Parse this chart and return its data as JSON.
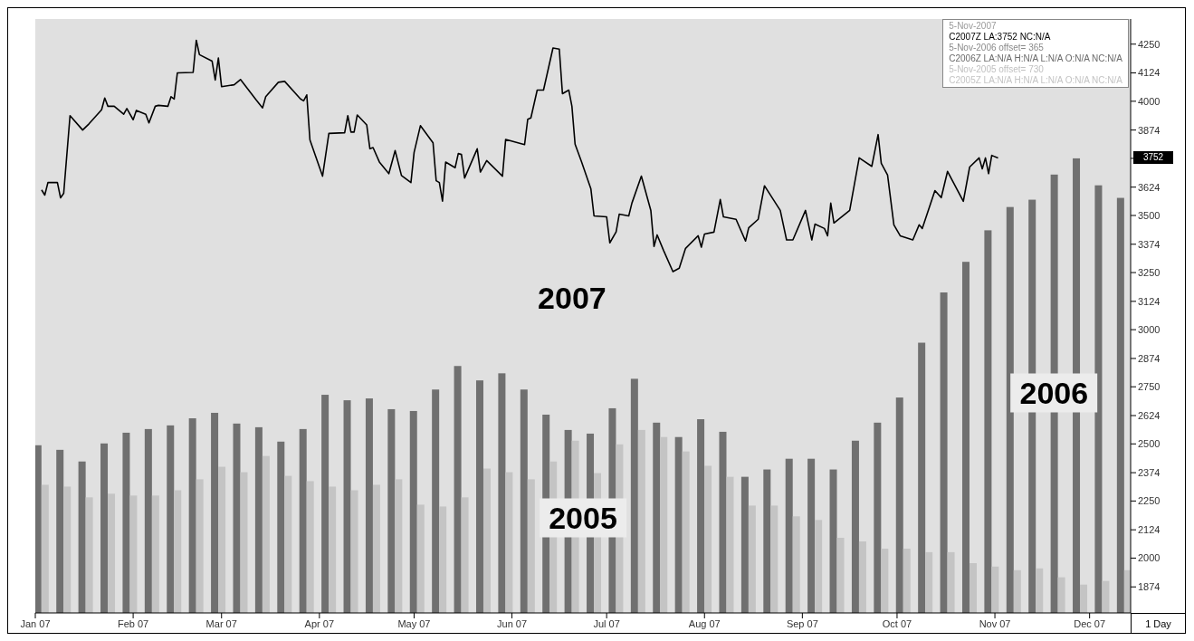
{
  "chart_data": {
    "type": "bar",
    "xlim": [
      "2007-01-01",
      "2007-12-14"
    ],
    "xticks": [
      {
        "value": "2007-01-01",
        "label": "Jan 07"
      },
      {
        "value": "2007-02-01",
        "label": "Feb 07"
      },
      {
        "value": "2007-03-01",
        "label": "Mar 07"
      },
      {
        "value": "2007-04-01",
        "label": "Apr 07"
      },
      {
        "value": "2007-05-01",
        "label": "May 07"
      },
      {
        "value": "2007-06-01",
        "label": "Jun 07"
      },
      {
        "value": "2007-07-01",
        "label": "Jul 07"
      },
      {
        "value": "2007-08-01",
        "label": "Aug 07"
      },
      {
        "value": "2007-09-01",
        "label": "Sep 07"
      },
      {
        "value": "2007-10-01",
        "label": "Oct 07"
      },
      {
        "value": "2007-11-01",
        "label": "Nov 07"
      },
      {
        "value": "2007-12-01",
        "label": "Dec 07"
      }
    ],
    "ylim": [
      1760,
      4360
    ],
    "yticks": [
      1874,
      2000,
      2124,
      2250,
      2374,
      2500,
      2624,
      2750,
      2874,
      3000,
      3124,
      3250,
      3374,
      3500,
      3624,
      {
        "value": 3750,
        "label": null
      },
      3874,
      4000,
      4124,
      4250
    ],
    "grid": false,
    "legend": false,
    "marker": "none",
    "line_style": "solid",
    "series": [
      {
        "name": "2007",
        "type": "line",
        "color": "#000000",
        "x": [
          "2007-01-03",
          "2007-01-04",
          "2007-01-05",
          "2007-01-08",
          "2007-01-09",
          "2007-01-10",
          "2007-01-12",
          "2007-01-16",
          "2007-01-18",
          "2007-01-22",
          "2007-01-23",
          "2007-01-24",
          "2007-01-26",
          "2007-01-29",
          "2007-01-30",
          "2007-02-01",
          "2007-02-02",
          "2007-02-05",
          "2007-02-06",
          "2007-02-08",
          "2007-02-09",
          "2007-02-12",
          "2007-02-13",
          "2007-02-14",
          "2007-02-15",
          "2007-02-20",
          "2007-02-21",
          "2007-02-22",
          "2007-02-26",
          "2007-02-27",
          "2007-02-28",
          "2007-03-01",
          "2007-03-05",
          "2007-03-07",
          "2007-03-12",
          "2007-03-14",
          "2007-03-15",
          "2007-03-19",
          "2007-03-21",
          "2007-03-26",
          "2007-03-27",
          "2007-03-28",
          "2007-03-29",
          "2007-04-02",
          "2007-04-04",
          "2007-04-09",
          "2007-04-10",
          "2007-04-11",
          "2007-04-12",
          "2007-04-13",
          "2007-04-16",
          "2007-04-17",
          "2007-04-18",
          "2007-04-20",
          "2007-04-23",
          "2007-04-25",
          "2007-04-27",
          "2007-04-30",
          "2007-05-01",
          "2007-05-03",
          "2007-05-07",
          "2007-05-08",
          "2007-05-09",
          "2007-05-10",
          "2007-05-11",
          "2007-05-14",
          "2007-05-15",
          "2007-05-16",
          "2007-05-17",
          "2007-05-21",
          "2007-05-22",
          "2007-05-24",
          "2007-05-29",
          "2007-05-30",
          "2007-06-05",
          "2007-06-06",
          "2007-06-07",
          "2007-06-09",
          "2007-06-11",
          "2007-06-14",
          "2007-06-16",
          "2007-06-17",
          "2007-06-19",
          "2007-06-20",
          "2007-06-21",
          "2007-06-23",
          "2007-06-26",
          "2007-06-27",
          "2007-07-01",
          "2007-07-02",
          "2007-07-04",
          "2007-07-05",
          "2007-07-08",
          "2007-07-09",
          "2007-07-12",
          "2007-07-15",
          "2007-07-16",
          "2007-07-17",
          "2007-07-19",
          "2007-07-22",
          "2007-07-24",
          "2007-07-26",
          "2007-07-30",
          "2007-07-31",
          "2007-08-01",
          "2007-08-04",
          "2007-08-06",
          "2007-08-07",
          "2007-08-11",
          "2007-08-14",
          "2007-08-15",
          "2007-08-18",
          "2007-08-20",
          "2007-08-25",
          "2007-08-27",
          "2007-08-29",
          "2007-09-02",
          "2007-09-04",
          "2007-09-05",
          "2007-09-08",
          "2007-09-09",
          "2007-09-10",
          "2007-09-11",
          "2007-09-16",
          "2007-09-19",
          "2007-09-23",
          "2007-09-25",
          "2007-09-26",
          "2007-09-28",
          "2007-09-30",
          "2007-10-02",
          "2007-10-06",
          "2007-10-08",
          "2007-10-09",
          "2007-10-13",
          "2007-10-15",
          "2007-10-17",
          "2007-10-22",
          "2007-10-24",
          "2007-10-27",
          "2007-10-28",
          "2007-10-29",
          "2007-10-30",
          "2007-10-31",
          "2007-11-02"
        ],
        "values": [
          3612,
          3589,
          3644,
          3644,
          3577,
          3597,
          3937,
          3874,
          3901,
          3963,
          4014,
          3978,
          3978,
          3943,
          3968,
          3919,
          3960,
          3943,
          3905,
          3978,
          3982,
          3978,
          4020,
          4010,
          4124,
          4126,
          4267,
          4204,
          4176,
          4093,
          4189,
          4064,
          4072,
          4095,
          4005,
          3971,
          4020,
          4083,
          4087,
          4010,
          4002,
          4028,
          3831,
          3672,
          3859,
          3862,
          3937,
          3865,
          3865,
          3940,
          3896,
          3792,
          3797,
          3734,
          3683,
          3784,
          3675,
          3644,
          3776,
          3893,
          3818,
          3652,
          3644,
          3563,
          3734,
          3709,
          3771,
          3767,
          3664,
          3792,
          3690,
          3740,
          3672,
          3833,
          3810,
          3921,
          3927,
          4049,
          4049,
          4233,
          4228,
          4033,
          4049,
          3978,
          3812,
          3737,
          3617,
          3498,
          3494,
          3380,
          3428,
          3506,
          3498,
          3554,
          3672,
          3522,
          3364,
          3415,
          3348,
          3254,
          3269,
          3356,
          3411,
          3361,
          3419,
          3427,
          3570,
          3494,
          3483,
          3388,
          3446,
          3483,
          3630,
          3522,
          3393,
          3393,
          3522,
          3393,
          3462,
          3443,
          3411,
          3554,
          3467,
          3522,
          3752,
          3715,
          3854,
          3728,
          3677,
          3459,
          3411,
          3393,
          3459,
          3443,
          3609,
          3578,
          3693,
          3562,
          3712,
          3752,
          3704,
          3752,
          3683,
          3763,
          3752
        ]
      },
      {
        "name": "2006",
        "color": "#707070",
        "x": [
          "2007-01-03",
          "2007-01-10",
          "2007-01-17",
          "2007-01-24",
          "2007-01-31",
          "2007-02-07",
          "2007-02-14",
          "2007-02-21",
          "2007-02-28",
          "2007-03-07",
          "2007-03-14",
          "2007-03-21",
          "2007-03-28",
          "2007-04-04",
          "2007-04-11",
          "2007-04-18",
          "2007-04-25",
          "2007-05-02",
          "2007-05-09",
          "2007-05-16",
          "2007-05-23",
          "2007-05-30",
          "2007-06-06",
          "2007-06-13",
          "2007-06-20",
          "2007-06-27",
          "2007-07-04",
          "2007-07-11",
          "2007-07-18",
          "2007-07-25",
          "2007-08-01",
          "2007-08-08",
          "2007-08-15",
          "2007-08-22",
          "2007-08-29",
          "2007-09-05",
          "2007-09-12",
          "2007-09-19",
          "2007-09-26",
          "2007-10-03",
          "2007-10-10",
          "2007-10-17",
          "2007-10-24",
          "2007-10-31",
          "2007-11-07",
          "2007-11-14",
          "2007-11-21",
          "2007-11-28",
          "2007-12-05",
          "2007-12-12"
        ],
        "values": [
          2494,
          2474,
          2423,
          2502,
          2549,
          2565,
          2581,
          2612,
          2636,
          2589,
          2573,
          2510,
          2565,
          2715,
          2691,
          2699,
          2652,
          2644,
          2738,
          2841,
          2778,
          2809,
          2738,
          2628,
          2561,
          2545,
          2656,
          2785,
          2593,
          2530,
          2608,
          2553,
          2356,
          2388,
          2435,
          2435,
          2388,
          2514,
          2593,
          2703,
          2943,
          3163,
          3297,
          3435,
          3537,
          3569,
          3679,
          3750,
          3632,
          3577
        ]
      },
      {
        "name": "2005",
        "color": "#c4c4c4",
        "x": [
          "2007-01-03",
          "2007-01-10",
          "2007-01-17",
          "2007-01-24",
          "2007-01-31",
          "2007-02-07",
          "2007-02-14",
          "2007-02-21",
          "2007-02-28",
          "2007-03-07",
          "2007-03-14",
          "2007-03-21",
          "2007-03-28",
          "2007-04-04",
          "2007-04-11",
          "2007-04-18",
          "2007-04-25",
          "2007-05-02",
          "2007-05-09",
          "2007-05-16",
          "2007-05-23",
          "2007-05-30",
          "2007-06-06",
          "2007-06-13",
          "2007-06-20",
          "2007-06-27",
          "2007-07-04",
          "2007-07-11",
          "2007-07-18",
          "2007-07-25",
          "2007-08-01",
          "2007-08-08",
          "2007-08-15",
          "2007-08-22",
          "2007-08-29",
          "2007-09-05",
          "2007-09-12",
          "2007-09-19",
          "2007-09-26",
          "2007-10-03",
          "2007-10-10",
          "2007-10-17",
          "2007-10-24",
          "2007-10-31",
          "2007-11-07",
          "2007-11-14",
          "2007-11-21",
          "2007-11-28",
          "2007-12-05",
          "2007-12-12"
        ],
        "values": [
          2321,
          2313,
          2266,
          2282,
          2274,
          2274,
          2297,
          2345,
          2400,
          2376,
          2447,
          2360,
          2337,
          2313,
          2297,
          2321,
          2345,
          2234,
          2226,
          2266,
          2392,
          2376,
          2345,
          2423,
          2514,
          2372,
          2498,
          2561,
          2530,
          2467,
          2404,
          2356,
          2230,
          2230,
          2183,
          2167,
          2089,
          2073,
          2041,
          2041,
          2026,
          2026,
          1978,
          1963,
          1947,
          1955,
          1916,
          1884,
          1900,
          1947
        ]
      }
    ],
    "annotations": [
      "5-Nov-2007",
      "C2007Z LA:3752 NC:N/A",
      "5-Nov-2006 offset= 365",
      "C2006Z LA:N/A H:N/A L:N/A O:N/A NC:N/A",
      "5-Nov-2005 offset= 730",
      "C2005Z LA:N/A H:N/A L:N/A O:N/A NC:N/A",
      "1 Day",
      "3752"
    ]
  }
}
